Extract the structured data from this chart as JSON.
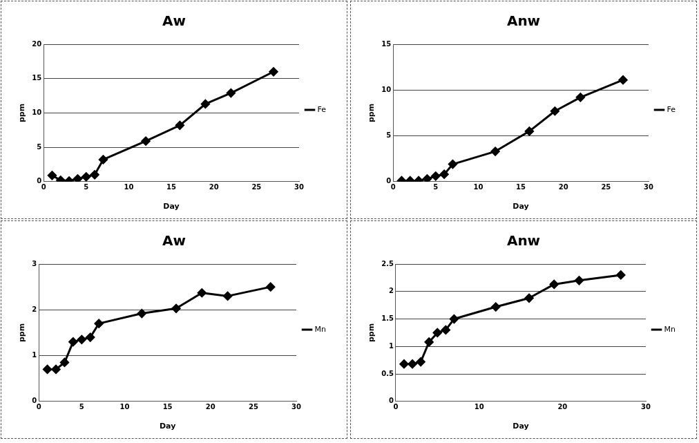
{
  "chart_data": [
    {
      "type": "line",
      "title": "Aw",
      "xlabel": "Day",
      "ylabel": "ppm",
      "x": [
        1,
        2,
        3,
        4,
        5,
        6,
        7,
        12,
        16,
        19,
        22,
        27
      ],
      "xlim": [
        0,
        30
      ],
      "xticks": [
        0,
        5,
        10,
        15,
        20,
        25,
        30
      ],
      "ylim": [
        0,
        20
      ],
      "yticks": [
        0,
        5,
        10,
        15,
        20
      ],
      "grid": "y",
      "legend": "right",
      "marker": "diamond",
      "line_style": "solid",
      "series": [
        {
          "name": "Fe",
          "color": "#000000",
          "values": [
            0.9,
            0.2,
            0.1,
            0.4,
            0.7,
            1.0,
            3.2,
            5.9,
            8.2,
            11.3,
            12.9,
            16.0
          ]
        }
      ]
    },
    {
      "type": "line",
      "title": "Anw",
      "xlabel": "Day",
      "ylabel": "ppm",
      "x": [
        1,
        2,
        3,
        4,
        5,
        6,
        7,
        12,
        16,
        19,
        22,
        27
      ],
      "xlim": [
        0,
        30
      ],
      "xticks": [
        0,
        5,
        10,
        15,
        20,
        25,
        30
      ],
      "ylim": [
        0,
        15
      ],
      "yticks": [
        0,
        5,
        10,
        15
      ],
      "grid": "y",
      "legend": "right",
      "marker": "diamond",
      "line_style": "solid",
      "series": [
        {
          "name": "Fe",
          "color": "#000000",
          "values": [
            0.1,
            0.1,
            0.1,
            0.3,
            0.6,
            0.8,
            1.9,
            3.3,
            5.5,
            7.7,
            9.2,
            11.1
          ]
        }
      ]
    },
    {
      "type": "line",
      "title": "Aw",
      "xlabel": "Day",
      "ylabel": "ppm",
      "x": [
        1,
        2,
        3,
        4,
        5,
        6,
        7,
        12,
        16,
        19,
        22,
        27
      ],
      "xlim": [
        0,
        30
      ],
      "xticks": [
        0,
        5,
        10,
        15,
        20,
        25,
        30
      ],
      "ylim": [
        0,
        3
      ],
      "yticks": [
        0,
        1,
        2,
        3
      ],
      "grid": "y",
      "legend": "right",
      "marker": "diamond",
      "line_style": "solid",
      "series": [
        {
          "name": "Mn",
          "color": "#000000",
          "values": [
            0.7,
            0.7,
            0.85,
            1.3,
            1.35,
            1.4,
            1.7,
            1.92,
            2.03,
            2.37,
            2.3,
            2.5
          ]
        }
      ]
    },
    {
      "type": "line",
      "title": "Anw",
      "xlabel": "Day",
      "ylabel": "ppm",
      "x": [
        1,
        2,
        3,
        4,
        5,
        6,
        7,
        12,
        16,
        19,
        22,
        27
      ],
      "xlim": [
        0,
        30
      ],
      "xticks": [
        0,
        10,
        20,
        30
      ],
      "ylim": [
        0,
        2.5
      ],
      "yticks": [
        0,
        0.5,
        1,
        1.5,
        2,
        2.5
      ],
      "grid": "y",
      "legend": "right",
      "marker": "diamond",
      "line_style": "solid",
      "series": [
        {
          "name": "Mn",
          "color": "#000000",
          "values": [
            0.68,
            0.68,
            0.72,
            1.08,
            1.25,
            1.3,
            1.5,
            1.72,
            1.88,
            2.13,
            2.2,
            2.3
          ]
        }
      ]
    }
  ]
}
